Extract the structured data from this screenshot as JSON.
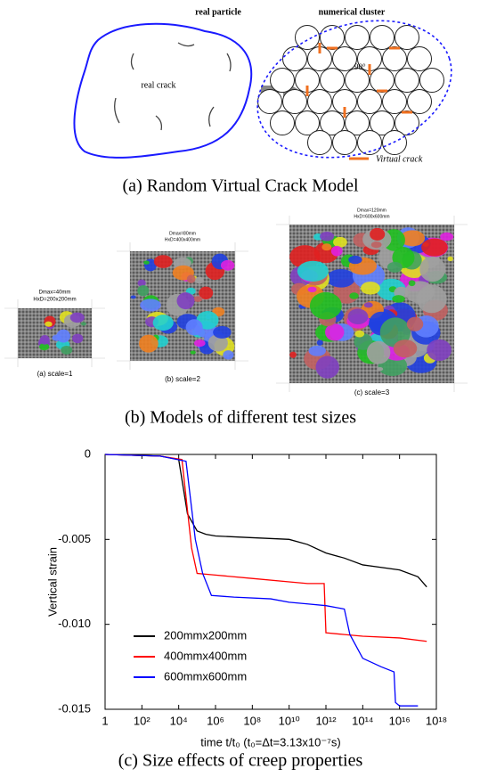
{
  "panel_a": {
    "real_particle": "real particle",
    "numerical_cluster": "numerical cluster",
    "real_crack": "real crack",
    "angle": "90°",
    "virtual_crack": "Virtual crack",
    "caption": "(a)  Random Virtual Crack Model"
  },
  "panel_b": {
    "models": [
      {
        "dmax": "Dmax=40mm",
        "size": "HxD=200x200mm",
        "caption": "(a) scale=1"
      },
      {
        "dmax": "Dmax=80mm",
        "size": "HxD=400x400mm",
        "caption": "(b) scale=2"
      },
      {
        "dmax": "Dmax=120mm",
        "size": "HxD=600x600mm",
        "caption": "(c) scale=3"
      }
    ],
    "caption": "(b)  Models of different test sizes"
  },
  "chart_data": {
    "type": "line",
    "xlabel": "time t/t₀ (t₀=Δt=3.13x10⁻⁷s)",
    "ylabel": "Vertical strain",
    "caption": "(c)  Size effects of creep properties",
    "xscale": "log",
    "legend": "lower left",
    "xlim": [
      1,
      1e+18
    ],
    "ylim": [
      -0.015,
      0
    ],
    "xticks": [
      1,
      {
        "value": 100,
        "label": "10²"
      },
      {
        "value": 10000,
        "label": "10⁴"
      },
      {
        "value": 1000000.0,
        "label": "10⁶"
      },
      {
        "value": 100000000.0,
        "label": "10⁸"
      },
      {
        "value": 10000000000.0,
        "label": "10¹⁰"
      },
      {
        "value": 1000000000000.0,
        "label": "10¹²"
      },
      {
        "value": 100000000000000.0,
        "label": "10¹⁴"
      },
      {
        "value": 1e+16,
        "label": "10¹⁶"
      },
      {
        "value": 1e+18,
        "label": "10¹⁸"
      }
    ],
    "yticks": [
      0,
      -0.005,
      {
        "value": -0.01,
        "label": "-0.010"
      },
      -0.015
    ],
    "series": [
      {
        "name": "200mmx200mm",
        "color": "#000000",
        "x": [
          1,
          1000,
          10000,
          30000,
          100000,
          300000,
          1000000.0,
          100000000.0,
          10000000000.0,
          100000000000.0,
          1000000000000.0,
          10000000000000.0,
          100000000000000.0,
          1e+16,
          1e+17,
          3e+17
        ],
        "values": [
          0,
          -0.0001,
          -0.0003,
          -0.0035,
          -0.0045,
          -0.0047,
          -0.0048,
          -0.0049,
          -0.005,
          -0.0053,
          -0.0058,
          -0.0061,
          -0.0065,
          -0.0068,
          -0.0072,
          -0.0078
        ]
      },
      {
        "name": "400mmx400mm",
        "color": "#ff0000",
        "x": [
          1,
          1000,
          15000,
          50000,
          100000,
          1000000.0,
          100000000.0,
          10000000000.0,
          100000000000.0,
          800000000000.0,
          1000000000000.0,
          10000000000000.0,
          100000000000000.0,
          1e+16,
          3e+17
        ],
        "values": [
          0,
          -0.0001,
          -0.0003,
          -0.0055,
          -0.007,
          -0.0071,
          -0.0073,
          -0.0075,
          -0.0076,
          -0.0076,
          -0.0105,
          -0.0106,
          -0.0107,
          -0.0108,
          -0.011
        ]
      },
      {
        "name": "600mmx600mm",
        "color": "#0000ff",
        "x": [
          1,
          1000,
          25000,
          80000,
          200000,
          600000,
          10000000.0,
          1000000000.0,
          10000000000.0,
          100000000000.0,
          1000000000000.0,
          10000000000000.0,
          20000000000000.0,
          100000000000000.0,
          1000000000000000.0,
          5000000000000000.0,
          6000000000000000.0,
          1e+16,
          1e+17
        ],
        "values": [
          0,
          -0.0001,
          -0.0004,
          -0.005,
          -0.007,
          -0.0083,
          -0.0084,
          -0.0085,
          -0.0087,
          -0.0088,
          -0.0089,
          -0.0091,
          -0.0106,
          -0.012,
          -0.0125,
          -0.0128,
          -0.0146,
          -0.0148,
          -0.0148
        ]
      }
    ]
  }
}
